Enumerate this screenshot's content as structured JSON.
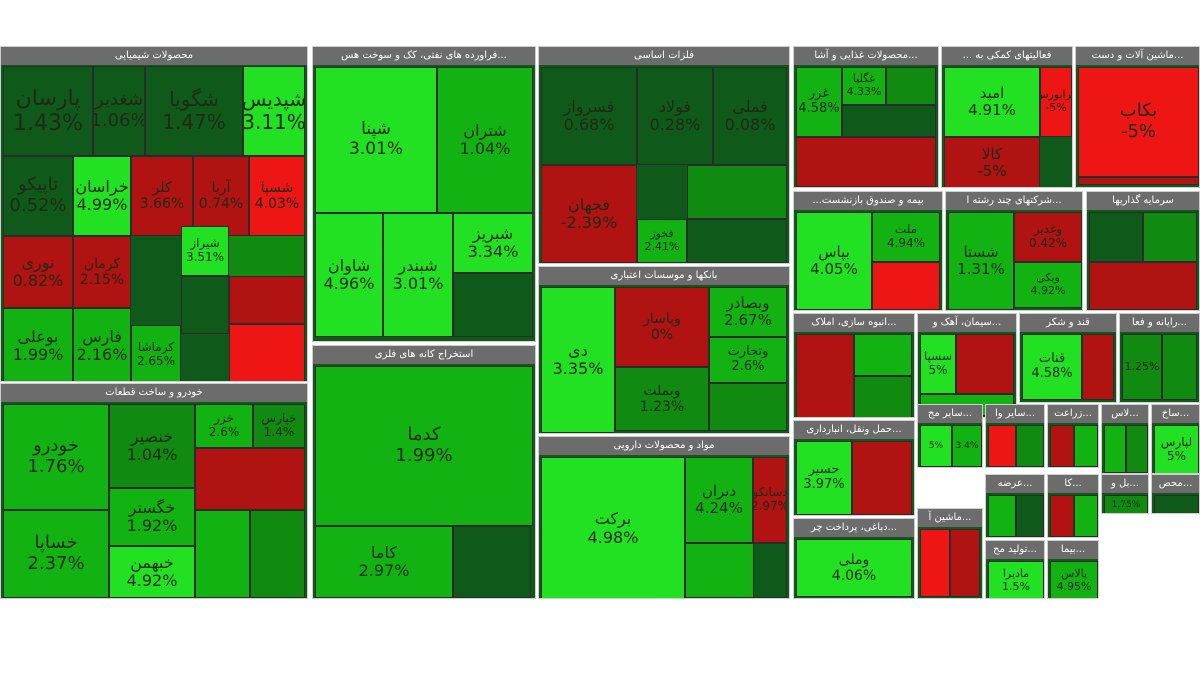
{
  "colors": {
    "strong_pos": "#22e022",
    "pos": "#13b213",
    "mild_pos": "#108a10",
    "neutral": "#0f5a1a",
    "neg": "#b11212",
    "strong_neg": "#ee1515"
  },
  "chart_data": {
    "type": "treemap",
    "sectors": [
      {
        "name": "محصولات شیمیایی",
        "tiles": [
          {
            "symbol": "پارسان",
            "change": "1.43%",
            "tone": "neutral"
          },
          {
            "symbol": "شغدیر",
            "change": "1.06%",
            "tone": "neutral"
          },
          {
            "symbol": "شگویا",
            "change": "1.47%",
            "tone": "neutral"
          },
          {
            "symbol": "شپدیس",
            "change": "3.11%",
            "tone": "strong_pos"
          },
          {
            "symbol": "تاپیکو",
            "change": "0.52%",
            "tone": "neutral"
          },
          {
            "symbol": "خراسان",
            "change": "4.99%",
            "tone": "strong_pos"
          },
          {
            "symbol": "کلر",
            "change": "3.66%",
            "tone": "neg"
          },
          {
            "symbol": "آریا",
            "change": "0.74%",
            "tone": "neg"
          },
          {
            "symbol": "شسپا",
            "change": "4.03%",
            "tone": "strong_neg"
          },
          {
            "symbol": "نوری",
            "change": "0.82%",
            "tone": "neg"
          },
          {
            "symbol": "کرمان",
            "change": "2.15%",
            "tone": "neg"
          },
          {
            "symbol": "شیراز",
            "change": "3.51%",
            "tone": "strong_pos"
          },
          {
            "symbol": "بوعلی",
            "change": "1.99%",
            "tone": "pos"
          },
          {
            "symbol": "فارس",
            "change": "2.16%",
            "tone": "pos"
          },
          {
            "symbol": "کرماشا",
            "change": "2.65%",
            "tone": "pos"
          }
        ]
      },
      {
        "name": "خودرو و ساخت قطعات",
        "tiles": [
          {
            "symbol": "خودرو",
            "change": "1.76%",
            "tone": "pos"
          },
          {
            "symbol": "خنصیر",
            "change": "1.04%",
            "tone": "mild_pos"
          },
          {
            "symbol": "خزر",
            "change": "2.6%",
            "tone": "pos"
          },
          {
            "symbol": "خپارس",
            "change": "1.4%",
            "tone": "mild_pos"
          },
          {
            "symbol": "خگستر",
            "change": "1.92%",
            "tone": "pos"
          },
          {
            "symbol": "خساپا",
            "change": "2.37%",
            "tone": "pos"
          },
          {
            "symbol": "خبهمن",
            "change": "4.92%",
            "tone": "strong_pos"
          }
        ]
      },
      {
        "name": "...فراورده های نفتی، کک و سوخت هس",
        "tiles": [
          {
            "symbol": "شپنا",
            "change": "3.01%",
            "tone": "strong_pos"
          },
          {
            "symbol": "شتران",
            "change": "1.04%",
            "tone": "pos"
          },
          {
            "symbol": "شبریز",
            "change": "3.34%",
            "tone": "strong_pos"
          },
          {
            "symbol": "شاوان",
            "change": "4.96%",
            "tone": "strong_pos"
          },
          {
            "symbol": "شبندر",
            "change": "3.01%",
            "tone": "strong_pos"
          }
        ]
      },
      {
        "name": "استخراج کانه های فلزی",
        "tiles": [
          {
            "symbol": "کدما",
            "change": "1.99%",
            "tone": "pos"
          },
          {
            "symbol": "کاما",
            "change": "2.97%",
            "tone": "pos"
          }
        ]
      },
      {
        "name": "فلزات اساسی",
        "tiles": [
          {
            "symbol": "فسرواز",
            "change": "0.68%",
            "tone": "neutral"
          },
          {
            "symbol": "فولاد",
            "change": "0.28%",
            "tone": "neutral"
          },
          {
            "symbol": "فملی",
            "change": "0.08%",
            "tone": "neutral"
          },
          {
            "symbol": "فجهان",
            "change": "-2.39%",
            "tone": "neg"
          },
          {
            "symbol": "فخوز",
            "change": "2.41%",
            "tone": "pos"
          }
        ]
      },
      {
        "name": "بانکها و موسسات اعتباری",
        "tiles": [
          {
            "symbol": "دی",
            "change": "3.35%",
            "tone": "strong_pos"
          },
          {
            "symbol": "وپاسار",
            "change": "0%",
            "tone": "neg"
          },
          {
            "symbol": "وبصادر",
            "change": "2.67%",
            "tone": "pos"
          },
          {
            "symbol": "وتجارت",
            "change": "2.6%",
            "tone": "pos"
          },
          {
            "symbol": "وبملت",
            "change": "1.23%",
            "tone": "mild_pos"
          }
        ]
      },
      {
        "name": "مواد و محصولات دارویی",
        "tiles": [
          {
            "symbol": "برکت",
            "change": "4.98%",
            "tone": "strong_pos"
          },
          {
            "symbol": "دبران",
            "change": "4.24%",
            "tone": "pos"
          },
          {
            "symbol": "دسانکو",
            "change": "2.97%",
            "tone": "neg"
          }
        ]
      },
      {
        "name": "...محصولات غذایی و آشا",
        "tiles": [
          {
            "symbol": "غزر",
            "change": "4.58%",
            "tone": "pos"
          },
          {
            "symbol": "غگلپا",
            "change": "4.33%",
            "tone": "pos"
          }
        ]
      },
      {
        "name": "فعالیتهای کمکی به ...",
        "tiles": [
          {
            "symbol": "امید",
            "change": "4.91%",
            "tone": "strong_pos"
          },
          {
            "symbol": "فرابورس",
            "change": "-5%",
            "tone": "strong_neg"
          },
          {
            "symbol": "کالا",
            "change": "-5%",
            "tone": "neg"
          }
        ]
      },
      {
        "name": "...ماشین آلات و دست",
        "tiles": [
          {
            "symbol": "بکاب",
            "change": "-5%",
            "tone": "strong_neg"
          }
        ]
      },
      {
        "name": "بیمه و صندوق بازنشست...",
        "tiles": [
          {
            "symbol": "بپاس",
            "change": "4.05%",
            "tone": "strong_pos"
          },
          {
            "symbol": "ملت",
            "change": "4.94%",
            "tone": "pos"
          }
        ]
      },
      {
        "name": "...شرکتهای چند رشته ا",
        "tiles": [
          {
            "symbol": "شستا",
            "change": "1.31%",
            "tone": "pos"
          },
          {
            "symbol": "وغدیر",
            "change": "0.42%",
            "tone": "neg"
          },
          {
            "symbol": "وبکی",
            "change": "4.92%",
            "tone": "pos"
          }
        ]
      },
      {
        "name": "سرمایه گذاریها",
        "tiles": []
      },
      {
        "name": "...انبوه سازی، املاک",
        "tiles": []
      },
      {
        "name": "...سیمان، آهک و",
        "tiles": [
          {
            "symbol": "سسپا",
            "change": "5%",
            "tone": "strong_pos"
          }
        ]
      },
      {
        "name": "قند و شکر",
        "tiles": [
          {
            "symbol": "قنات",
            "change": "4.58%",
            "tone": "strong_pos"
          }
        ]
      },
      {
        "name": "...رایانه و فعا",
        "tiles": [
          {
            "symbol": "",
            "change": "1.25%",
            "tone": "mild_pos"
          }
        ]
      },
      {
        "name": "...حمل ونقل، انبارداری",
        "tiles": [
          {
            "symbol": "حسیر",
            "change": "3.97%",
            "tone": "strong_pos"
          }
        ]
      },
      {
        "name": "...دباغی، پرداخت چر",
        "tiles": [
          {
            "symbol": "وملی",
            "change": "4.06%",
            "tone": "strong_pos"
          }
        ]
      },
      {
        "name": "...سایر مح",
        "tiles": [
          {
            "symbol": "",
            "change": "5%",
            "tone": "strong_pos"
          },
          {
            "symbol": "",
            "change": "3.4%",
            "tone": "pos"
          }
        ]
      },
      {
        "name": "...سایر وا",
        "tiles": []
      },
      {
        "name": "...زراعت",
        "tiles": []
      },
      {
        "name": "...لاس",
        "tiles": []
      },
      {
        "name": "...ساخ",
        "tiles": [
          {
            "symbol": "لپارس",
            "change": "5%",
            "tone": "strong_pos"
          }
        ]
      },
      {
        "name": "...ماشین آ",
        "tiles": []
      },
      {
        "name": "...عرضه",
        "tiles": []
      },
      {
        "name": "...کا",
        "tiles": []
      },
      {
        "name": "...بل و",
        "tiles": [
          {
            "symbol": "",
            "change": "1.75%",
            "tone": "mild_pos"
          }
        ]
      },
      {
        "name": "...محص",
        "tiles": []
      },
      {
        "name": "...تولید مح",
        "tiles": [
          {
            "symbol": "مادیرا",
            "change": "1.5%",
            "tone": "strong_pos"
          }
        ]
      },
      {
        "name": "...بیما",
        "tiles": [
          {
            "symbol": "پالاس",
            "change": "4.95%",
            "tone": "pos"
          }
        ]
      }
    ]
  }
}
